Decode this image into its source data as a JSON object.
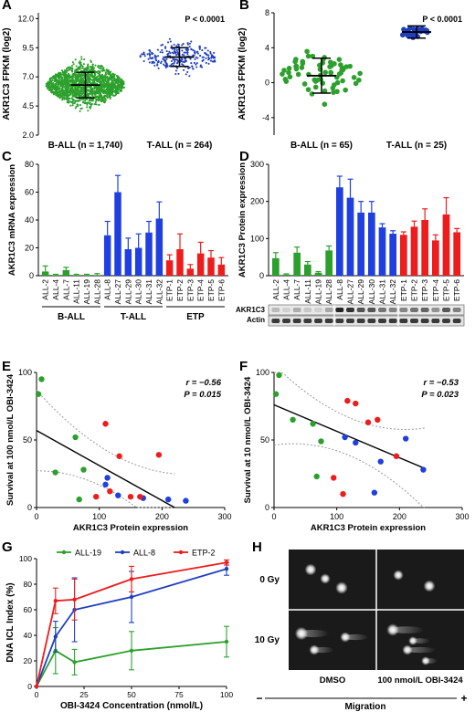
{
  "chart_data": [
    {
      "panel": "A",
      "type": "scatter",
      "ylabel": "AKR1C3 FPKM (log2)",
      "ylim": [
        2.0,
        12.5
      ],
      "yticks": [
        "2.0",
        "4.5",
        "7.0",
        "9.5",
        "12.0"
      ],
      "categories": [
        "B-ALL (n = 1,740)",
        "T-ALL (n = 264)"
      ],
      "groups": [
        {
          "name": "B-ALL (n = 1,740)",
          "color": "#2ca02c",
          "n": 1740,
          "mean": 6.3,
          "sd": 1.1,
          "range": [
            2.0,
            12.0
          ]
        },
        {
          "name": "T-ALL (n = 264)",
          "color": "#1f3fbf",
          "n": 264,
          "mean": 8.7,
          "sd": 0.8,
          "range": [
            5.5,
            12.5
          ]
        }
      ],
      "pvalue": "P < 0.0001"
    },
    {
      "panel": "B",
      "type": "scatter",
      "ylabel": "AKR1C3 FPKM (log2)",
      "ylim": [
        -6,
        8
      ],
      "yticks": [
        "-4",
        "0",
        "4",
        "8"
      ],
      "categories": [
        "B-ALL (n = 65)",
        "T-ALL (n = 25)"
      ],
      "groups": [
        {
          "name": "B-ALL (n = 65)",
          "color": "#2ca02c",
          "n": 65,
          "mean": 0.8,
          "sd": 2.0,
          "range": [
            -6,
            6.5
          ]
        },
        {
          "name": "T-ALL (n = 25)",
          "color": "#1f3fbf",
          "n": 25,
          "mean": 5.8,
          "sd": 0.7,
          "range": [
            0,
            7.5
          ]
        }
      ],
      "pvalue": "P < 0.0001"
    },
    {
      "panel": "C",
      "type": "bar",
      "ylabel": "AKR1C3 mRNA expression",
      "ylim": [
        0,
        80
      ],
      "yticks": [
        "0",
        "20",
        "40",
        "60",
        "80"
      ],
      "categories": [
        "ALL-2",
        "ALL-4",
        "ALL-7",
        "ALL-11",
        "ALL-19",
        "ALL-28",
        "ALL-8",
        "ALL-27",
        "ALL-29",
        "ALL-30",
        "ALL-31",
        "ALL-32",
        "ETP-1",
        "ETP-2",
        "ETP-3",
        "ETP-4",
        "ETP-5",
        "ETP-6"
      ],
      "values": [
        3,
        0.5,
        4,
        0.5,
        0.5,
        0.5,
        29,
        60,
        19,
        20,
        31,
        41,
        11,
        19,
        5,
        16,
        13,
        8
      ],
      "errors": [
        4,
        0.5,
        2,
        0.5,
        0.5,
        1,
        10,
        12,
        8,
        10,
        8,
        12,
        4,
        11,
        3,
        8,
        5,
        5
      ],
      "colors": [
        "#2ca02c",
        "#2ca02c",
        "#2ca02c",
        "#2ca02c",
        "#2ca02c",
        "#2ca02c",
        "#1f3fe0",
        "#1f3fe0",
        "#1f3fe0",
        "#1f3fe0",
        "#1f3fe0",
        "#1f3fe0",
        "#ee1c1c",
        "#ee1c1c",
        "#ee1c1c",
        "#ee1c1c",
        "#ee1c1c",
        "#ee1c1c"
      ],
      "group_labels": [
        "B-ALL",
        "T-ALL",
        "ETP"
      ]
    },
    {
      "panel": "D",
      "type": "bar",
      "ylabel": "AKR1C3 Protein expression",
      "ylim": [
        0,
        300
      ],
      "yticks": [
        "0",
        "100",
        "200",
        "300"
      ],
      "categories": [
        "ALL-2",
        "ALL-4",
        "ALL-7",
        "ALL-11",
        "ALL-19",
        "ALL-28",
        "ALL-8",
        "ALL-27",
        "ALL-29",
        "ALL-30",
        "ALL-31",
        "ALL-32",
        "ETP-1",
        "ETP-2",
        "ETP-3",
        "ETP-4",
        "ETP-5",
        "ETP-6"
      ],
      "values": [
        47,
        3,
        62,
        30,
        8,
        68,
        238,
        210,
        170,
        170,
        130,
        113,
        110,
        132,
        150,
        95,
        165,
        117
      ],
      "errors": [
        15,
        2,
        15,
        8,
        3,
        12,
        30,
        50,
        30,
        30,
        10,
        8,
        8,
        15,
        30,
        15,
        45,
        10
      ],
      "colors": [
        "#2ca02c",
        "#2ca02c",
        "#2ca02c",
        "#2ca02c",
        "#2ca02c",
        "#2ca02c",
        "#1f3fe0",
        "#1f3fe0",
        "#1f3fe0",
        "#1f3fe0",
        "#1f3fe0",
        "#1f3fe0",
        "#ee1c1c",
        "#ee1c1c",
        "#ee1c1c",
        "#ee1c1c",
        "#ee1c1c",
        "#ee1c1c"
      ],
      "blot_labels": [
        "AKR1C3",
        "Actin"
      ]
    },
    {
      "panel": "E",
      "type": "scatter",
      "xlabel": "AKR1C3 Protein expression",
      "ylabel": "Survival at 100 nmol/L OBI-3424",
      "xlim": [
        0,
        300
      ],
      "ylim": [
        0,
        100
      ],
      "xticks": [
        "0",
        "100",
        "200",
        "300"
      ],
      "yticks": [
        "0",
        "50",
        "100"
      ],
      "points": [
        {
          "x": 3,
          "y": 84,
          "c": "#2ca02c"
        },
        {
          "x": 8,
          "y": 95,
          "c": "#2ca02c"
        },
        {
          "x": 30,
          "y": 26,
          "c": "#2ca02c"
        },
        {
          "x": 62,
          "y": 52,
          "c": "#2ca02c"
        },
        {
          "x": 68,
          "y": 6,
          "c": "#2ca02c"
        },
        {
          "x": 75,
          "y": 28,
          "c": "#2ca02c"
        },
        {
          "x": 110,
          "y": 17,
          "c": "#1f3fe0"
        },
        {
          "x": 113,
          "y": 22,
          "c": "#1f3fe0"
        },
        {
          "x": 130,
          "y": 9,
          "c": "#1f3fe0"
        },
        {
          "x": 170,
          "y": 7,
          "c": "#1f3fe0"
        },
        {
          "x": 210,
          "y": 6,
          "c": "#1f3fe0"
        },
        {
          "x": 238,
          "y": 5,
          "c": "#1f3fe0"
        },
        {
          "x": 95,
          "y": 8,
          "c": "#ee1c1c"
        },
        {
          "x": 110,
          "y": 62,
          "c": "#ee1c1c"
        },
        {
          "x": 117,
          "y": 12,
          "c": "#ee1c1c"
        },
        {
          "x": 132,
          "y": 38,
          "c": "#ee1c1c"
        },
        {
          "x": 150,
          "y": 8,
          "c": "#ee1c1c"
        },
        {
          "x": 165,
          "y": 8,
          "c": "#ee1c1c"
        },
        {
          "x": 195,
          "y": 39,
          "c": "#ee1c1c"
        }
      ],
      "fit": [
        [
          0,
          57
        ],
        [
          220,
          0
        ]
      ],
      "r": "r = −0.56",
      "p": "P = 0.015"
    },
    {
      "panel": "F",
      "type": "scatter",
      "xlabel": "AKR1C3 Protein expression",
      "ylabel": "Survival at 10 nmol/L OBI-3424",
      "xlim": [
        0,
        300
      ],
      "ylim": [
        0,
        100
      ],
      "xticks": [
        "0",
        "100",
        "200",
        "300"
      ],
      "yticks": [
        "0",
        "50",
        "100"
      ],
      "points": [
        {
          "x": 3,
          "y": 84,
          "c": "#2ca02c"
        },
        {
          "x": 8,
          "y": 98,
          "c": "#2ca02c"
        },
        {
          "x": 30,
          "y": 65,
          "c": "#2ca02c"
        },
        {
          "x": 62,
          "y": 62,
          "c": "#2ca02c"
        },
        {
          "x": 68,
          "y": 23,
          "c": "#2ca02c"
        },
        {
          "x": 75,
          "y": 49,
          "c": "#2ca02c"
        },
        {
          "x": 113,
          "y": 52,
          "c": "#1f3fe0"
        },
        {
          "x": 130,
          "y": 48,
          "c": "#1f3fe0"
        },
        {
          "x": 160,
          "y": 11,
          "c": "#1f3fe0"
        },
        {
          "x": 170,
          "y": 34,
          "c": "#1f3fe0"
        },
        {
          "x": 210,
          "y": 51,
          "c": "#1f3fe0"
        },
        {
          "x": 238,
          "y": 28,
          "c": "#1f3fe0"
        },
        {
          "x": 95,
          "y": 22,
          "c": "#ee1c1c"
        },
        {
          "x": 110,
          "y": 10,
          "c": "#ee1c1c"
        },
        {
          "x": 117,
          "y": 79,
          "c": "#ee1c1c"
        },
        {
          "x": 130,
          "y": 77,
          "c": "#ee1c1c"
        },
        {
          "x": 150,
          "y": 63,
          "c": "#ee1c1c"
        },
        {
          "x": 165,
          "y": 65,
          "c": "#ee1c1c"
        },
        {
          "x": 195,
          "y": 38,
          "c": "#ee1c1c"
        }
      ],
      "fit": [
        [
          0,
          76
        ],
        [
          240,
          29
        ]
      ],
      "r": "r = −0.53",
      "p": "P = 0.023"
    },
    {
      "panel": "G",
      "type": "line",
      "xlabel": "OBI-3424 Concentration (nmol/L)",
      "ylabel": "DNA ICL Index (%)",
      "xlim": [
        0,
        100
      ],
      "ylim": [
        0,
        100
      ],
      "xticks": [
        "0",
        "25",
        "50",
        "75",
        "100"
      ],
      "yticks": [
        "0",
        "20",
        "40",
        "60",
        "80",
        "100"
      ],
      "x": [
        0,
        10,
        20,
        50,
        100
      ],
      "series": [
        {
          "name": "ALL-19",
          "color": "#2ca02c",
          "values": [
            0,
            28,
            19,
            28,
            35
          ],
          "errors": [
            0,
            18,
            10,
            15,
            12
          ]
        },
        {
          "name": "ALL-8",
          "color": "#1f3fbf",
          "values": [
            0,
            39,
            60,
            70,
            92
          ],
          "errors": [
            0,
            12,
            25,
            20,
            5
          ]
        },
        {
          "name": "ETP-2",
          "color": "#ee1c1c",
          "values": [
            0,
            67,
            68,
            84,
            97
          ],
          "errors": [
            0,
            10,
            16,
            10,
            2
          ]
        }
      ],
      "legend": "top"
    },
    {
      "panel": "H",
      "type": "image",
      "row_labels": [
        "0 Gy",
        "10 Gy"
      ],
      "col_labels": [
        "DMSO",
        "100 nmol/L OBI-3424"
      ],
      "axis_label": "Migration",
      "minus": "−",
      "plus": "+"
    }
  ],
  "panel_letters": [
    "A",
    "B",
    "C",
    "D",
    "E",
    "F",
    "G",
    "H"
  ]
}
